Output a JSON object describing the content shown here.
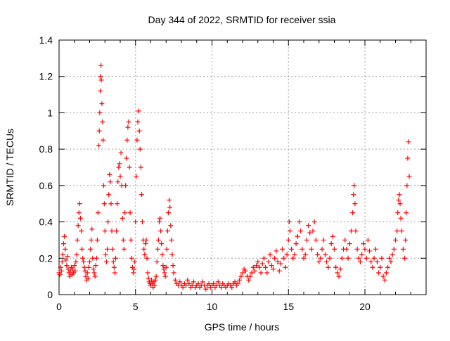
{
  "chart_data": {
    "type": "scatter",
    "title": "Day 344 of 2022, SRMTID for receiver ssia",
    "xlabel": "GPS time / hours",
    "ylabel": "SRMTID / TECUs",
    "xlim": [
      0,
      24
    ],
    "ylim": [
      0,
      1.4
    ],
    "xticks": [
      0,
      5,
      10,
      15,
      20
    ],
    "yticks": [
      0,
      0.2,
      0.4,
      0.6,
      0.8,
      1,
      1.2,
      1.4
    ],
    "xtick_labels": [
      "0",
      "5",
      "10",
      "15",
      "20"
    ],
    "ytick_labels": [
      "0",
      "0.2",
      "0.4",
      "0.6",
      "0.8",
      "1",
      "1.2",
      "1.4"
    ],
    "grid": true,
    "marker": "+",
    "color": "#ff0000",
    "series": [
      {
        "name": "SRMTID",
        "points": [
          [
            0.0,
            0.12
          ],
          [
            0.05,
            0.11
          ],
          [
            0.1,
            0.15
          ],
          [
            0.15,
            0.13
          ],
          [
            0.2,
            0.18
          ],
          [
            0.25,
            0.22
          ],
          [
            0.3,
            0.28
          ],
          [
            0.35,
            0.32
          ],
          [
            0.4,
            0.25
          ],
          [
            0.45,
            0.19
          ],
          [
            0.5,
            0.16
          ],
          [
            0.55,
            0.21
          ],
          [
            0.6,
            0.14
          ],
          [
            0.65,
            0.12
          ],
          [
            0.7,
            0.1
          ],
          [
            0.75,
            0.13
          ],
          [
            0.8,
            0.15
          ],
          [
            0.85,
            0.11
          ],
          [
            0.9,
            0.14
          ],
          [
            0.95,
            0.12
          ],
          [
            1.0,
            0.16
          ],
          [
            1.05,
            0.13
          ],
          [
            1.1,
            0.18
          ],
          [
            1.15,
            0.22
          ],
          [
            1.2,
            0.3
          ],
          [
            1.25,
            0.38
          ],
          [
            1.3,
            0.45
          ],
          [
            1.35,
            0.5
          ],
          [
            1.4,
            0.42
          ],
          [
            1.45,
            0.35
          ],
          [
            1.5,
            0.25
          ],
          [
            1.55,
            0.2
          ],
          [
            1.6,
            0.18
          ],
          [
            1.65,
            0.15
          ],
          [
            1.7,
            0.13
          ],
          [
            1.75,
            0.1
          ],
          [
            1.8,
            0.08
          ],
          [
            1.85,
            0.12
          ],
          [
            1.9,
            0.09
          ],
          [
            1.95,
            0.15
          ],
          [
            2.0,
            0.18
          ],
          [
            2.05,
            0.25
          ],
          [
            2.1,
            0.3
          ],
          [
            2.15,
            0.36
          ],
          [
            2.2,
            0.2
          ],
          [
            2.25,
            0.14
          ],
          [
            2.3,
            0.12
          ],
          [
            2.35,
            0.1
          ],
          [
            2.4,
            0.16
          ],
          [
            2.45,
            0.2
          ],
          [
            2.5,
            0.3
          ],
          [
            2.55,
            0.45
          ],
          [
            2.6,
            0.82
          ],
          [
            2.63,
            0.9
          ],
          [
            2.66,
            1.0
          ],
          [
            2.7,
            1.12
          ],
          [
            2.72,
            1.2
          ],
          [
            2.74,
            1.26
          ],
          [
            2.76,
            1.18
          ],
          [
            2.8,
            1.05
          ],
          [
            2.84,
            0.95
          ],
          [
            2.88,
            0.85
          ],
          [
            2.92,
            0.6
          ],
          [
            2.96,
            0.5
          ],
          [
            3.0,
            0.35
          ],
          [
            3.05,
            0.22
          ],
          [
            3.1,
            0.18
          ],
          [
            3.15,
            0.25
          ],
          [
            3.2,
            0.4
          ],
          [
            3.25,
            0.55
          ],
          [
            3.3,
            0.66
          ],
          [
            3.35,
            0.62
          ],
          [
            3.4,
            0.5
          ],
          [
            3.45,
            0.35
          ],
          [
            3.5,
            0.25
          ],
          [
            3.55,
            0.18
          ],
          [
            3.6,
            0.15
          ],
          [
            3.65,
            0.12
          ],
          [
            3.7,
            0.2
          ],
          [
            3.75,
            0.35
          ],
          [
            3.8,
            0.5
          ],
          [
            3.85,
            0.62
          ],
          [
            3.9,
            0.7
          ],
          [
            3.95,
            0.72
          ],
          [
            4.0,
            0.65
          ],
          [
            4.05,
            0.78
          ],
          [
            4.1,
            0.6
          ],
          [
            4.15,
            0.42
          ],
          [
            4.2,
            0.3
          ],
          [
            4.25,
            0.25
          ],
          [
            4.3,
            0.45
          ],
          [
            4.35,
            0.6
          ],
          [
            4.4,
            0.75
          ],
          [
            4.45,
            0.85
          ],
          [
            4.5,
            0.92
          ],
          [
            4.55,
            0.95
          ],
          [
            4.6,
            0.7
          ],
          [
            4.65,
            0.45
          ],
          [
            4.7,
            0.3
          ],
          [
            4.75,
            0.2
          ],
          [
            4.8,
            0.15
          ],
          [
            4.85,
            0.12
          ],
          [
            4.9,
            0.14
          ],
          [
            4.95,
            0.18
          ],
          [
            5.0,
            0.4
          ],
          [
            5.05,
            0.65
          ],
          [
            5.1,
            0.85
          ],
          [
            5.15,
            0.95
          ],
          [
            5.2,
            1.01
          ],
          [
            5.25,
            0.9
          ],
          [
            5.3,
            0.8
          ],
          [
            5.35,
            0.7
          ],
          [
            5.4,
            0.55
          ],
          [
            5.45,
            0.4
          ],
          [
            5.5,
            0.3
          ],
          [
            5.55,
            0.25
          ],
          [
            5.6,
            0.22
          ],
          [
            5.65,
            0.28
          ],
          [
            5.7,
            0.3
          ],
          [
            5.75,
            0.2
          ],
          [
            5.8,
            0.12
          ],
          [
            5.85,
            0.09
          ],
          [
            5.9,
            0.07
          ],
          [
            5.95,
            0.06
          ],
          [
            6.0,
            0.05
          ],
          [
            6.05,
            0.08
          ],
          [
            6.1,
            0.06
          ],
          [
            6.15,
            0.04
          ],
          [
            6.2,
            0.07
          ],
          [
            6.25,
            0.05
          ],
          [
            6.3,
            0.08
          ],
          [
            6.35,
            0.1
          ],
          [
            6.4,
            0.18
          ],
          [
            6.45,
            0.25
          ],
          [
            6.5,
            0.3
          ],
          [
            6.55,
            0.4
          ],
          [
            6.6,
            0.42
          ],
          [
            6.65,
            0.35
          ],
          [
            6.7,
            0.28
          ],
          [
            6.75,
            0.22
          ],
          [
            6.8,
            0.16
          ],
          [
            6.85,
            0.14
          ],
          [
            6.9,
            0.12
          ],
          [
            6.95,
            0.1
          ],
          [
            7.0,
            0.15
          ],
          [
            7.05,
            0.25
          ],
          [
            7.1,
            0.35
          ],
          [
            7.15,
            0.45
          ],
          [
            7.2,
            0.52
          ],
          [
            7.25,
            0.48
          ],
          [
            7.3,
            0.38
          ],
          [
            7.35,
            0.3
          ],
          [
            7.4,
            0.22
          ],
          [
            7.45,
            0.16
          ],
          [
            7.5,
            0.12
          ],
          [
            7.6,
            0.08
          ],
          [
            7.7,
            0.06
          ],
          [
            7.8,
            0.05
          ],
          [
            7.9,
            0.07
          ],
          [
            8.0,
            0.05
          ],
          [
            8.1,
            0.04
          ],
          [
            8.2,
            0.06
          ],
          [
            8.3,
            0.05
          ],
          [
            8.4,
            0.08
          ],
          [
            8.5,
            0.06
          ],
          [
            8.6,
            0.04
          ],
          [
            8.7,
            0.05
          ],
          [
            8.8,
            0.07
          ],
          [
            8.9,
            0.04
          ],
          [
            9.0,
            0.05
          ],
          [
            9.1,
            0.06
          ],
          [
            9.2,
            0.04
          ],
          [
            9.3,
            0.05
          ],
          [
            9.4,
            0.07
          ],
          [
            9.5,
            0.05
          ],
          [
            9.6,
            0.03
          ],
          [
            9.7,
            0.05
          ],
          [
            9.8,
            0.06
          ],
          [
            9.9,
            0.04
          ],
          [
            10.0,
            0.05
          ],
          [
            10.1,
            0.06
          ],
          [
            10.2,
            0.04
          ],
          [
            10.3,
            0.05
          ],
          [
            10.4,
            0.07
          ],
          [
            10.5,
            0.05
          ],
          [
            10.6,
            0.04
          ],
          [
            10.7,
            0.06
          ],
          [
            10.8,
            0.05
          ],
          [
            10.9,
            0.04
          ],
          [
            11.0,
            0.05
          ],
          [
            11.1,
            0.06
          ],
          [
            11.2,
            0.05
          ],
          [
            11.3,
            0.04
          ],
          [
            11.4,
            0.06
          ],
          [
            11.5,
            0.07
          ],
          [
            11.6,
            0.05
          ],
          [
            11.7,
            0.06
          ],
          [
            11.8,
            0.08
          ],
          [
            11.9,
            0.1
          ],
          [
            12.0,
            0.12
          ],
          [
            12.1,
            0.14
          ],
          [
            12.2,
            0.13
          ],
          [
            12.3,
            0.1
          ],
          [
            12.4,
            0.08
          ],
          [
            12.5,
            0.1
          ],
          [
            12.6,
            0.12
          ],
          [
            12.7,
            0.15
          ],
          [
            12.8,
            0.13
          ],
          [
            12.9,
            0.16
          ],
          [
            13.0,
            0.18
          ],
          [
            13.1,
            0.15
          ],
          [
            13.2,
            0.12
          ],
          [
            13.3,
            0.17
          ],
          [
            13.4,
            0.2
          ],
          [
            13.5,
            0.15
          ],
          [
            13.6,
            0.12
          ],
          [
            13.7,
            0.18
          ],
          [
            13.8,
            0.22
          ],
          [
            13.9,
            0.16
          ],
          [
            14.0,
            0.14
          ],
          [
            14.1,
            0.2
          ],
          [
            14.2,
            0.24
          ],
          [
            14.3,
            0.18
          ],
          [
            14.4,
            0.13
          ],
          [
            14.5,
            0.17
          ],
          [
            14.6,
            0.25
          ],
          [
            14.7,
            0.2
          ],
          [
            14.8,
            0.15
          ],
          [
            14.9,
            0.22
          ],
          [
            15.0,
            0.3
          ],
          [
            15.05,
            0.4
          ],
          [
            15.1,
            0.35
          ],
          [
            15.2,
            0.25
          ],
          [
            15.3,
            0.2
          ],
          [
            15.4,
            0.22
          ],
          [
            15.5,
            0.28
          ],
          [
            15.6,
            0.32
          ],
          [
            15.7,
            0.4
          ],
          [
            15.8,
            0.35
          ],
          [
            15.9,
            0.25
          ],
          [
            16.0,
            0.2
          ],
          [
            16.1,
            0.22
          ],
          [
            16.2,
            0.3
          ],
          [
            16.3,
            0.38
          ],
          [
            16.4,
            0.34
          ],
          [
            16.5,
            0.25
          ],
          [
            16.6,
            0.35
          ],
          [
            16.7,
            0.4
          ],
          [
            16.8,
            0.3
          ],
          [
            16.9,
            0.22
          ],
          [
            17.0,
            0.18
          ],
          [
            17.1,
            0.2
          ],
          [
            17.2,
            0.25
          ],
          [
            17.3,
            0.3
          ],
          [
            17.4,
            0.22
          ],
          [
            17.5,
            0.18
          ],
          [
            17.6,
            0.15
          ],
          [
            17.7,
            0.2
          ],
          [
            17.8,
            0.28
          ],
          [
            17.9,
            0.32
          ],
          [
            18.0,
            0.25
          ],
          [
            18.1,
            0.15
          ],
          [
            18.2,
            0.12
          ],
          [
            18.3,
            0.1
          ],
          [
            18.4,
            0.14
          ],
          [
            18.5,
            0.2
          ],
          [
            18.6,
            0.25
          ],
          [
            18.7,
            0.3
          ],
          [
            18.8,
            0.25
          ],
          [
            18.9,
            0.2
          ],
          [
            19.0,
            0.28
          ],
          [
            19.1,
            0.35
          ],
          [
            19.2,
            0.45
          ],
          [
            19.25,
            0.55
          ],
          [
            19.3,
            0.6
          ],
          [
            19.35,
            0.5
          ],
          [
            19.4,
            0.35
          ],
          [
            19.5,
            0.25
          ],
          [
            19.6,
            0.2
          ],
          [
            19.7,
            0.18
          ],
          [
            19.8,
            0.22
          ],
          [
            19.9,
            0.28
          ],
          [
            20.0,
            0.25
          ],
          [
            20.1,
            0.2
          ],
          [
            20.2,
            0.3
          ],
          [
            20.3,
            0.24
          ],
          [
            20.4,
            0.18
          ],
          [
            20.5,
            0.15
          ],
          [
            20.6,
            0.2
          ],
          [
            20.7,
            0.25
          ],
          [
            20.8,
            0.18
          ],
          [
            20.9,
            0.12
          ],
          [
            21.0,
            0.15
          ],
          [
            21.1,
            0.2
          ],
          [
            21.2,
            0.1
          ],
          [
            21.3,
            0.08
          ],
          [
            21.4,
            0.12
          ],
          [
            21.5,
            0.15
          ],
          [
            21.6,
            0.2
          ],
          [
            21.7,
            0.18
          ],
          [
            21.8,
            0.22
          ],
          [
            21.9,
            0.25
          ],
          [
            22.0,
            0.3
          ],
          [
            22.1,
            0.35
          ],
          [
            22.15,
            0.45
          ],
          [
            22.2,
            0.52
          ],
          [
            22.25,
            0.55
          ],
          [
            22.3,
            0.5
          ],
          [
            22.35,
            0.42
          ],
          [
            22.4,
            0.35
          ],
          [
            22.5,
            0.25
          ],
          [
            22.6,
            0.2
          ],
          [
            22.65,
            0.3
          ],
          [
            22.7,
            0.45
          ],
          [
            22.75,
            0.6
          ],
          [
            22.8,
            0.75
          ],
          [
            22.85,
            0.84
          ],
          [
            22.9,
            0.65
          ]
        ]
      }
    ]
  }
}
